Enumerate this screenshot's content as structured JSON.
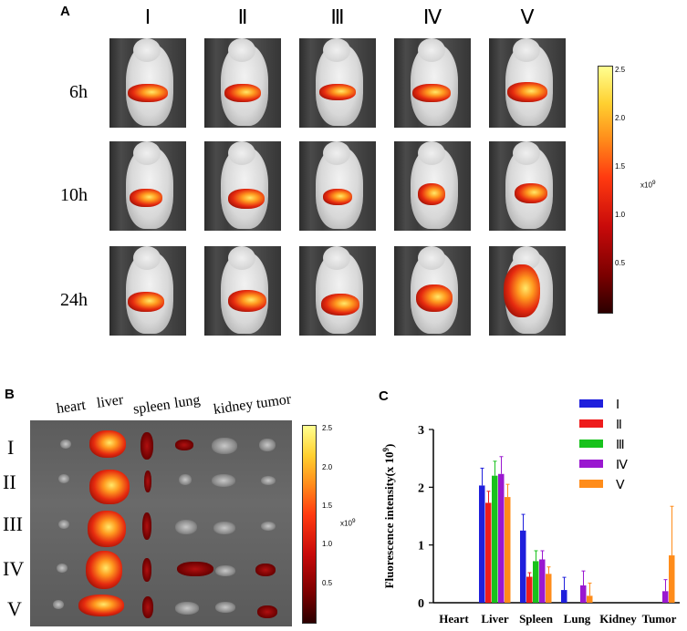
{
  "panel_a": {
    "letter": "A",
    "groups": [
      "Ⅰ",
      "Ⅱ",
      "Ⅲ",
      "Ⅳ",
      "Ⅴ"
    ],
    "timepoints": [
      "6h",
      "10h",
      "24h"
    ],
    "colorbar": {
      "ticks": [
        "2.5",
        "2.0",
        "1.5",
        "1.0",
        "0.5"
      ],
      "unit": "x10",
      "unit_exp": "9",
      "low_color": "#2b0000",
      "high_color": "#ffff90"
    }
  },
  "panel_b": {
    "letter": "B",
    "organs": [
      "heart",
      "liver",
      "spleen",
      "lung",
      "kidney",
      "tumor"
    ],
    "groups": [
      "I",
      "II",
      "III",
      "IV",
      "V"
    ],
    "colorbar": {
      "ticks": [
        "2.5",
        "2.0",
        "1.5",
        "1.0",
        "0.5"
      ],
      "unit": "x10",
      "unit_exp": "9"
    }
  },
  "panel_c": {
    "letter": "C"
  },
  "chart_data": {
    "type": "bar",
    "title": "",
    "xlabel": "",
    "ylabel": "Fluorescence intensity(x 10",
    "ylabel_exp": "9",
    "ylabel_close": ")",
    "ylim": [
      0,
      3
    ],
    "yticks": [
      "0",
      "1",
      "2",
      "3"
    ],
    "categories": [
      "Heart",
      "Liver",
      "Spleen",
      "Lung",
      "Kidney",
      "Tumor"
    ],
    "series": [
      {
        "name": "Ⅰ",
        "color": "#1f1fdc",
        "values": [
          0,
          2.03,
          1.25,
          0.22,
          0,
          0
        ],
        "errors": [
          0,
          0.3,
          0.28,
          0.22,
          0,
          0
        ]
      },
      {
        "name": "Ⅱ",
        "color": "#ee1c1c",
        "values": [
          0,
          1.73,
          0.45,
          0,
          0,
          0
        ],
        "errors": [
          0,
          0.2,
          0.07,
          0,
          0,
          0
        ]
      },
      {
        "name": "Ⅲ",
        "color": "#18c21c",
        "values": [
          0,
          2.2,
          0.72,
          0,
          0,
          0
        ],
        "errors": [
          0,
          0.25,
          0.18,
          0,
          0,
          0
        ]
      },
      {
        "name": "Ⅳ",
        "color": "#9a18d0",
        "values": [
          0,
          2.23,
          0.75,
          0.3,
          0,
          0.2
        ],
        "errors": [
          0,
          0.3,
          0.15,
          0.25,
          0,
          0.2
        ]
      },
      {
        "name": "Ⅴ",
        "color": "#ff8c1a",
        "values": [
          0,
          1.83,
          0.5,
          0.12,
          0,
          0.82
        ],
        "errors": [
          0,
          0.22,
          0.12,
          0.22,
          0,
          0.85
        ]
      }
    ]
  }
}
